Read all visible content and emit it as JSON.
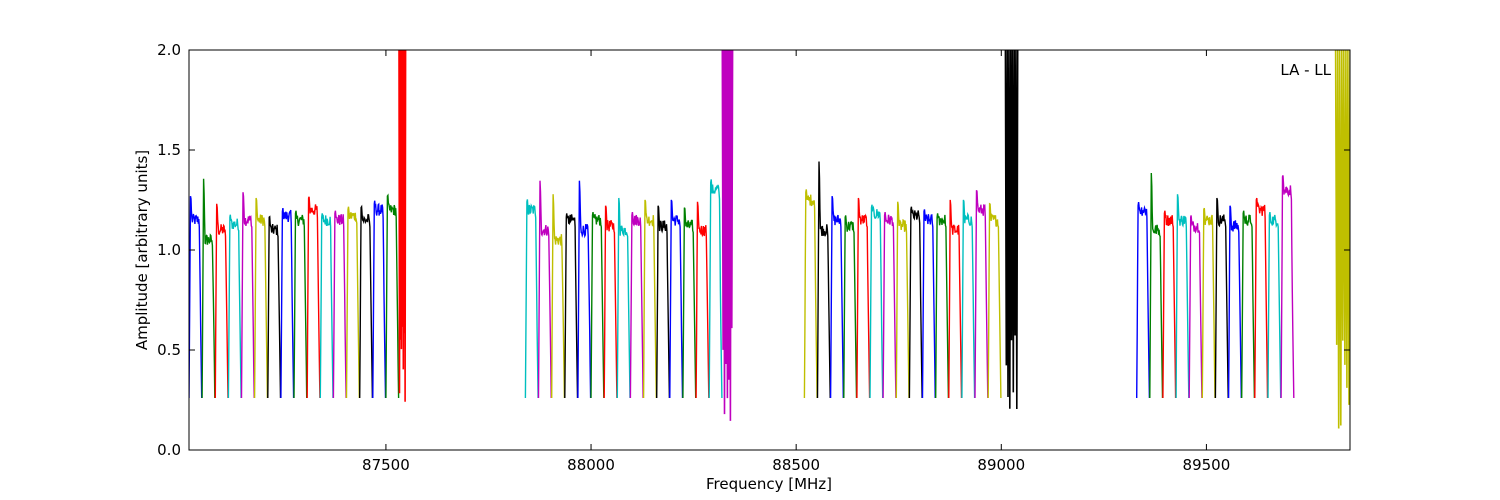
{
  "chart_data": {
    "type": "line",
    "xlabel": "Frequency [MHz]",
    "ylabel": "Amplitude [arbitrary units]",
    "annotation": "LA - LL",
    "xlim": [
      87020,
      89850
    ],
    "ylim": [
      0.0,
      2.0
    ],
    "x_ticks": [
      87500,
      88000,
      88500,
      89000,
      89500
    ],
    "x_tick_labels": [
      "87500",
      "88000",
      "88500",
      "89000",
      "89500"
    ],
    "y_ticks": [
      0.0,
      0.5,
      1.0,
      1.5,
      2.0
    ],
    "y_tick_labels": [
      "0.0",
      "0.5",
      "1.0",
      "1.5",
      "2.0"
    ],
    "grid": false,
    "colors": [
      "#0000ff",
      "#008000",
      "#ff0000",
      "#00bfbf",
      "#bf00bf",
      "#bfbf00",
      "#000000"
    ],
    "groups": [
      {
        "name": "group-1",
        "x_start": 87020,
        "segment_width": 32,
        "edge_value": 0.26,
        "peaks": [
          1.31,
          1.4,
          1.27,
          1.2,
          1.33,
          1.3,
          1.2,
          1.23,
          1.22,
          1.3,
          1.2,
          1.22,
          1.24,
          1.25,
          1.27,
          1.31
        ],
        "plateaus": [
          1.15,
          1.05,
          1.1,
          1.13,
          1.15,
          1.15,
          1.1,
          1.17,
          1.15,
          1.2,
          1.15,
          1.15,
          1.17,
          1.15,
          1.2,
          1.2
        ],
        "tail": {
          "x_start": 87532,
          "x_end": 87548,
          "max": 2.0,
          "min": 0.14
        }
      },
      {
        "name": "group-2",
        "x_start": 87840,
        "segment_width": 32,
        "edge_value": 0.26,
        "peaks": [
          1.28,
          1.39,
          1.32,
          1.2,
          1.39,
          1.21,
          1.26,
          1.3,
          1.21,
          1.29,
          1.26,
          1.29,
          1.25,
          1.28,
          1.38
        ],
        "plateaus": [
          1.2,
          1.1,
          1.05,
          1.15,
          1.1,
          1.15,
          1.12,
          1.1,
          1.15,
          1.15,
          1.12,
          1.15,
          1.12,
          1.1,
          1.3
        ],
        "tail": {
          "x_start": 88320,
          "x_end": 88345,
          "max": 2.0,
          "min": 0.13
        }
      },
      {
        "name": "group-3",
        "x_start": 88520,
        "segment_width": 32,
        "edge_value": 0.26,
        "peaks": [
          1.33,
          1.49,
          1.31,
          1.2,
          1.3,
          1.25,
          1.21,
          1.28,
          1.24,
          1.23,
          1.2,
          1.29,
          1.29,
          1.34,
          1.27
        ],
        "plateaus": [
          1.25,
          1.1,
          1.15,
          1.12,
          1.15,
          1.18,
          1.15,
          1.12,
          1.17,
          1.15,
          1.15,
          1.1,
          1.15,
          1.2,
          1.15
        ],
        "tail": {
          "x_start": 89010,
          "x_end": 89040,
          "max": 2.0,
          "min": 0.15
        }
      },
      {
        "name": "group-4",
        "x_start": 89330,
        "segment_width": 32,
        "edge_value": 0.26,
        "peaks": [
          1.26,
          1.43,
          1.22,
          1.32,
          1.2,
          1.24,
          1.3,
          1.26,
          1.22,
          1.29,
          1.21,
          1.41
        ],
        "plateaus": [
          1.2,
          1.1,
          1.15,
          1.15,
          1.12,
          1.15,
          1.15,
          1.12,
          1.15,
          1.2,
          1.15,
          1.3
        ],
        "tail": {
          "x_start": 89815,
          "x_end": 89850,
          "max": 2.0,
          "min": 0.1
        }
      }
    ]
  }
}
